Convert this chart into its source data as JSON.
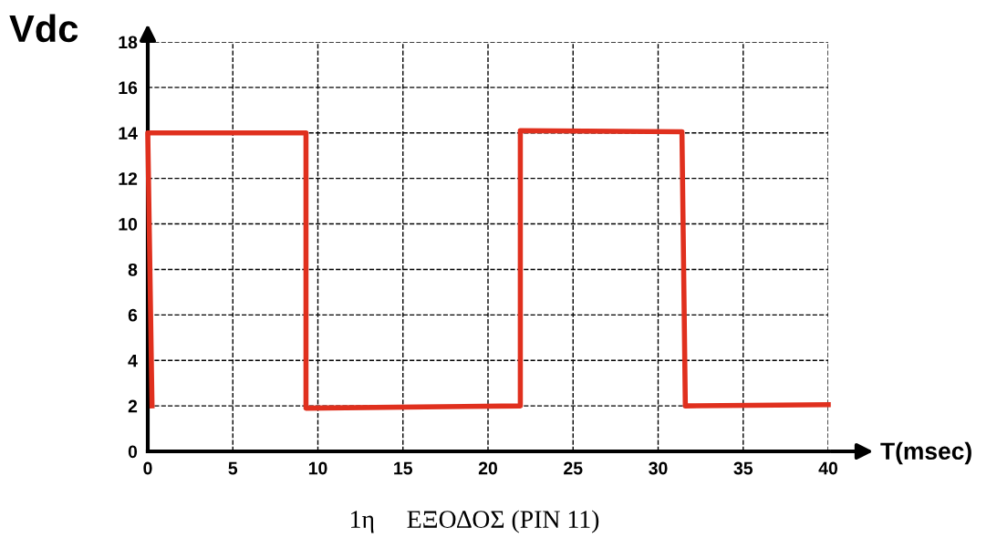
{
  "chart_data": {
    "type": "line",
    "ylabel": "Vdc",
    "xlabel": "T(msec)",
    "series": [
      {
        "color": "#e0301e",
        "x": [
          0.25,
          0,
          9.3,
          9.3,
          21.9,
          21.9,
          31.4,
          31.6,
          40
        ],
        "values": [
          2,
          14,
          14,
          1.9,
          2,
          14.1,
          14.05,
          2,
          2.05
        ]
      }
    ],
    "xlim": [
      0,
      40
    ],
    "ylim": [
      0,
      18
    ],
    "xticks": [
      0,
      5,
      10,
      15,
      20,
      25,
      30,
      35,
      40
    ],
    "yticks": [
      0,
      2,
      4,
      6,
      8,
      10,
      12,
      14,
      16,
      18
    ],
    "grid": true,
    "line_style": "solid",
    "marker": "none",
    "annotations": [
      "1η     ΕΞΟΔΟΣ (PIN 11)"
    ]
  }
}
